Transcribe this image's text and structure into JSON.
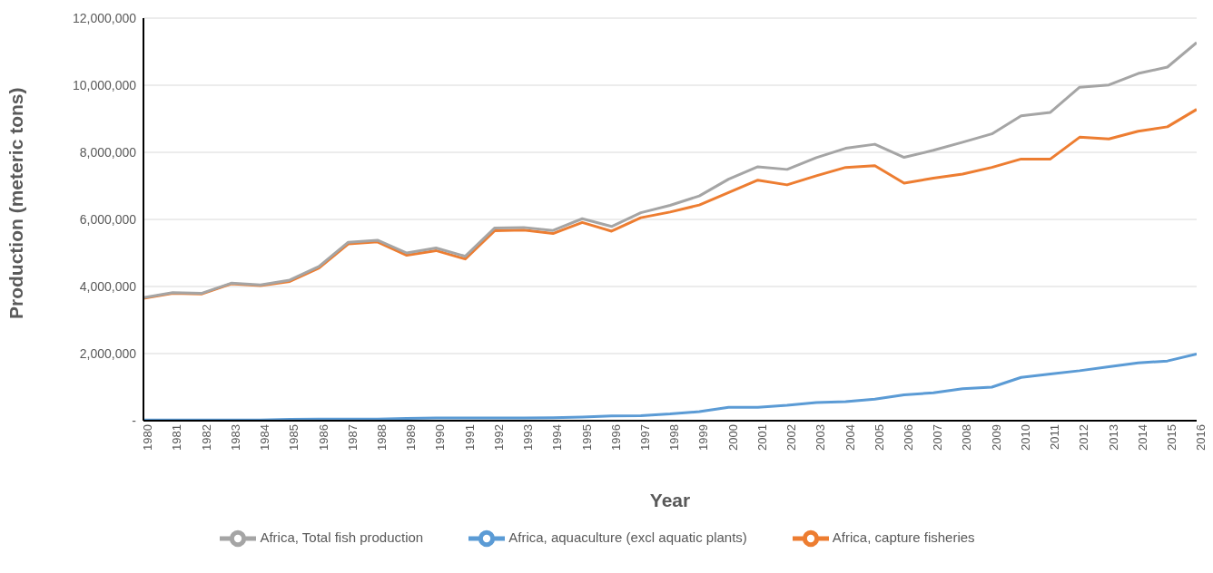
{
  "chart_data": {
    "type": "line",
    "xlabel": "Year",
    "ylabel": "Production (meteric tons)",
    "categories": [
      "1980",
      "1981",
      "1982",
      "1983",
      "1984",
      "1985",
      "1986",
      "1987",
      "1988",
      "1989",
      "1990",
      "1991",
      "1992",
      "1993",
      "1994",
      "1995",
      "1996",
      "1997",
      "1998",
      "1999",
      "2000",
      "2001",
      "2002",
      "2003",
      "2004",
      "2005",
      "2006",
      "2007",
      "2008",
      "2009",
      "2010",
      "2011",
      "2012",
      "2013",
      "2014",
      "2015",
      "2016"
    ],
    "series": [
      {
        "name": "Africa, aquaculture (excl aquatic plants)",
        "color": "#5b9bd5",
        "values": [
          20000,
          20000,
          20000,
          20000,
          20000,
          40000,
          50000,
          50000,
          50000,
          70000,
          80000,
          80000,
          80000,
          80000,
          90000,
          110000,
          140000,
          150000,
          200000,
          270000,
          400000,
          400000,
          460000,
          540000,
          570000,
          640000,
          770000,
          830000,
          950000,
          1000000,
          1290000,
          1390000,
          1490000,
          1610000,
          1720000,
          1780000,
          1990000
        ]
      },
      {
        "name": "Africa, capture fisheries",
        "color": "#ed7d31",
        "values": [
          3650000,
          3800000,
          3780000,
          4080000,
          4030000,
          4150000,
          4550000,
          5270000,
          5330000,
          4930000,
          5070000,
          4820000,
          5660000,
          5680000,
          5580000,
          5910000,
          5650000,
          6050000,
          6220000,
          6430000,
          6800000,
          7170000,
          7030000,
          7300000,
          7550000,
          7600000,
          7080000,
          7230000,
          7350000,
          7550000,
          7800000,
          7800000,
          8450000,
          8400000,
          8630000,
          8760000,
          9280000
        ]
      },
      {
        "name": "Africa, Total fish production",
        "color": "#a5a5a5",
        "values": [
          3670000,
          3820000,
          3800000,
          4100000,
          4050000,
          4190000,
          4600000,
          5320000,
          5380000,
          5000000,
          5150000,
          4900000,
          5740000,
          5760000,
          5670000,
          6020000,
          5790000,
          6200000,
          6420000,
          6700000,
          7200000,
          7570000,
          7490000,
          7840000,
          8120000,
          8240000,
          7850000,
          8060000,
          8300000,
          8550000,
          9090000,
          9190000,
          9940000,
          10010000,
          10350000,
          10540000,
          11270000
        ]
      }
    ],
    "ylim": [
      0,
      12000000
    ],
    "yticks": [
      {
        "value": 0,
        "label": "-"
      },
      {
        "value": 2000000,
        "label": "2,000,000"
      },
      {
        "value": 4000000,
        "label": "4,000,000"
      },
      {
        "value": 6000000,
        "label": "6,000,000"
      },
      {
        "value": 8000000,
        "label": "8,000,000"
      },
      {
        "value": 10000000,
        "label": "10,000,000"
      },
      {
        "value": 12000000,
        "label": "12,000,000"
      }
    ],
    "grid": "y",
    "legend": "bottom",
    "marker": "none",
    "line_style": "solid"
  }
}
